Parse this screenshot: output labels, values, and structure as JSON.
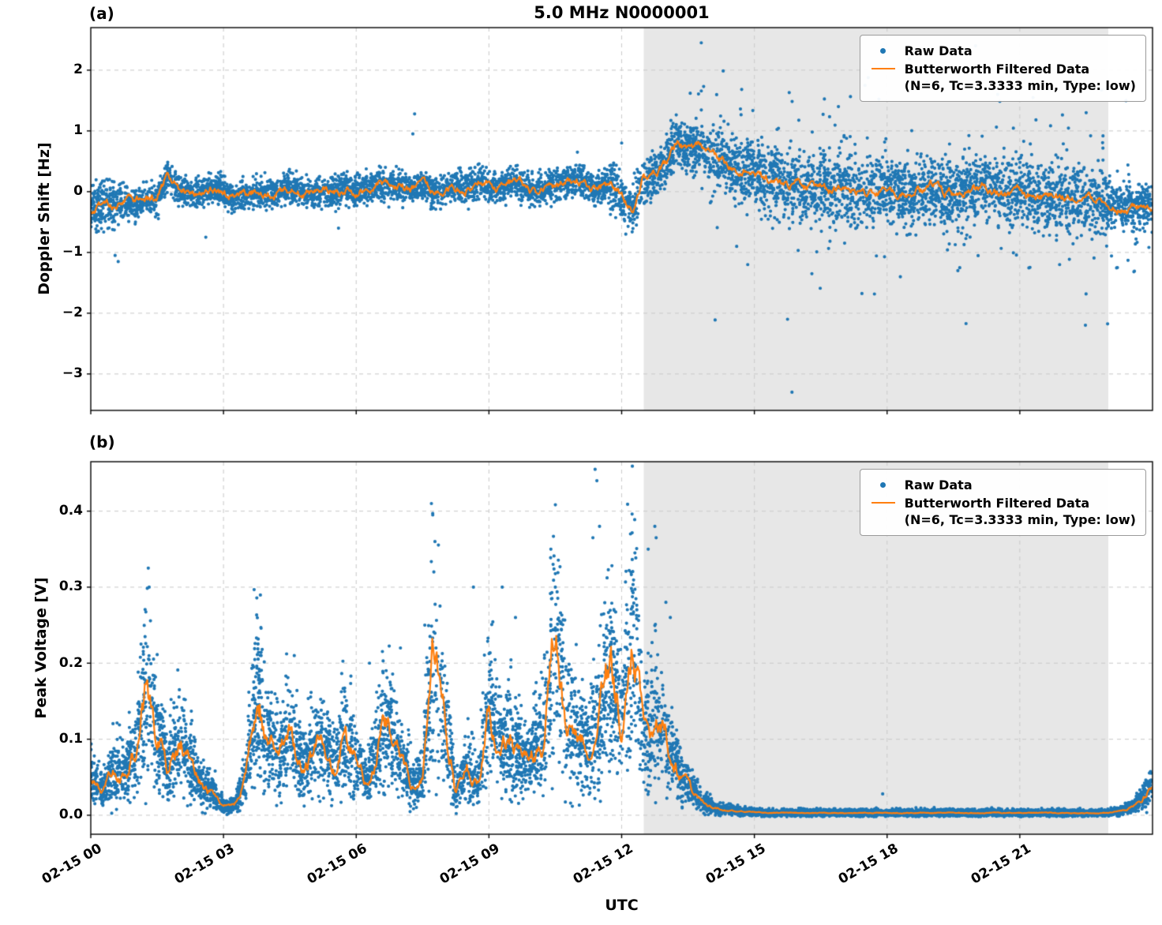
{
  "figure": {
    "title": "5.0 MHz N0000001",
    "xlabel": "UTC",
    "panel_a_label": "(a)",
    "panel_b_label": "(b)",
    "x_ticklabels": [
      "02-15 00",
      "02-15 03",
      "02-15 06",
      "02-15 09",
      "02-15 12",
      "02-15 15",
      "02-15 18",
      "02-15 21"
    ],
    "colors": {
      "raw": "#1f77b4",
      "filtered": "#ff7f0e",
      "night_shade": "#e7e7e7",
      "grid": "#cccccc",
      "spine": "#000000"
    },
    "legend": {
      "raw_label": "Raw Data",
      "filtered_label": "Butterworth Filtered Data",
      "filtered_sublabel": "(N=6, Tc=3.3333 min, Type: low)"
    }
  },
  "chart_data": [
    {
      "type": "scatter",
      "panel": "a",
      "ylabel": "Doppler Shift [Hz]",
      "ylim": [
        -3.6,
        2.7
      ],
      "yticks": [
        2,
        1,
        0,
        -1,
        -2,
        -3
      ],
      "y_ticklabels": [
        "2",
        "1",
        "0",
        "−1",
        "−2",
        "−3"
      ],
      "xlim_hours": [
        0,
        24
      ],
      "xticks_hours": [
        0,
        3,
        6,
        9,
        12,
        15,
        18,
        21
      ],
      "night_shade_hours": [
        12.5,
        23.0
      ],
      "grid": true,
      "legend_position": "upper right",
      "series": [
        {
          "name": "Raw Data",
          "render": "scatter",
          "color": "#1f77b4",
          "band_halfwidth_hz": [
            {
              "from": 0.0,
              "to": 0.8,
              "s": 0.3
            },
            {
              "from": 0.8,
              "to": 11.7,
              "s": 0.2
            },
            {
              "from": 11.7,
              "to": 12.5,
              "s": 0.34
            },
            {
              "from": 12.5,
              "to": 14.0,
              "s": 0.3
            },
            {
              "from": 14.0,
              "to": 23.0,
              "s": 0.42
            },
            {
              "from": 23.0,
              "to": 24.0,
              "s": 0.28
            }
          ],
          "notable_outliers": [
            [
              0.55,
              -1.05
            ],
            [
              0.62,
              -1.15
            ],
            [
              2.6,
              -0.75
            ],
            [
              5.6,
              -0.6
            ],
            [
              7.28,
              0.95
            ],
            [
              7.32,
              1.28
            ],
            [
              11.0,
              0.65
            ],
            [
              12.0,
              0.8
            ],
            [
              13.55,
              1.62
            ],
            [
              13.8,
              2.45
            ],
            [
              14.6,
              -0.9
            ],
            [
              14.85,
              -1.2
            ],
            [
              15.75,
              -2.1
            ],
            [
              15.85,
              -3.3
            ],
            [
              16.3,
              -1.35
            ],
            [
              16.9,
              1.4
            ],
            [
              17.5,
              1.75
            ],
            [
              18.3,
              -1.4
            ],
            [
              18.9,
              1.8
            ],
            [
              19.6,
              -1.3
            ],
            [
              20.0,
              2.4
            ],
            [
              20.5,
              1.6
            ],
            [
              21.3,
              1.55
            ],
            [
              21.9,
              -1.2
            ],
            [
              22.5,
              1.3
            ],
            [
              23.4,
              1.5
            ]
          ]
        },
        {
          "name": "Butterworth Filtered Data (N=6, Tc=3.3333 min, Type: low)",
          "render": "line",
          "color": "#ff7f0e",
          "x_hours_start": 0,
          "x_hours_step": 0.25,
          "y": [
            -0.35,
            -0.2,
            -0.25,
            -0.15,
            -0.2,
            -0.1,
            -0.15,
            0.3,
            0,
            -0.05,
            0,
            0.05,
            0,
            -0.1,
            -0.05,
            0,
            -0.05,
            0,
            0.05,
            0,
            -0.05,
            0,
            0,
            0.05,
            0,
            0.05,
            0.1,
            0.05,
            0.1,
            0.05,
            0.1,
            0,
            0.05,
            0.1,
            0.05,
            0.15,
            0.1,
            0.05,
            0.15,
            0.1,
            0,
            0.05,
            0.1,
            0.15,
            0.2,
            0.1,
            0.05,
            0.15,
            -0.1,
            -0.3,
            0.2,
            0.3,
            0.5,
            0.85,
            0.7,
            0.75,
            0.6,
            0.5,
            0.4,
            0.35,
            0.3,
            0.2,
            0.15,
            0.1,
            0.1,
            0.05,
            0.1,
            0,
            0.05,
            0,
            -0.05,
            0,
            0.05,
            0,
            -0.05,
            0,
            0.1,
            0,
            -0.05,
            0,
            0.05,
            0.1,
            0,
            -0.05,
            0,
            -0.05,
            -0.1,
            -0.05,
            -0.1,
            -0.15,
            -0.1,
            -0.15,
            -0.2,
            -0.25,
            -0.3,
            -0.2,
            -0.25
          ]
        }
      ]
    },
    {
      "type": "scatter",
      "panel": "b",
      "ylabel": "Peak Voltage [V]",
      "ylim": [
        -0.025,
        0.465
      ],
      "yticks": [
        0.0,
        0.1,
        0.2,
        0.3,
        0.4
      ],
      "y_ticklabels": [
        "0.0",
        "0.1",
        "0.2",
        "0.3",
        "0.4"
      ],
      "xlim_hours": [
        0,
        24
      ],
      "xticks_hours": [
        0,
        3,
        6,
        9,
        12,
        15,
        18,
        21
      ],
      "night_shade_hours": [
        12.5,
        23.0
      ],
      "grid": true,
      "legend_position": "upper right",
      "series": [
        {
          "name": "Raw Data",
          "render": "scatter",
          "color": "#1f77b4",
          "relative_band": {
            "min_factor": 0.0,
            "max_factor": 2.0,
            "additive_v": 0.004
          },
          "notable_outliers": [
            [
              1.3,
              0.325
            ],
            [
              1.32,
              0.3
            ],
            [
              3.85,
              0.21
            ],
            [
              4.6,
              0.21
            ],
            [
              6.3,
              0.2
            ],
            [
              7.0,
              0.22
            ],
            [
              7.55,
              0.25
            ],
            [
              7.7,
              0.41
            ],
            [
              7.73,
              0.395
            ],
            [
              7.78,
              0.36
            ],
            [
              8.65,
              0.3
            ],
            [
              9.3,
              0.3
            ],
            [
              9.6,
              0.26
            ],
            [
              10.4,
              0.35
            ],
            [
              10.45,
              0.33
            ],
            [
              10.5,
              0.3
            ],
            [
              11.35,
              0.365
            ],
            [
              11.4,
              0.455
            ],
            [
              11.44,
              0.44
            ],
            [
              11.5,
              0.38
            ],
            [
              12.2,
              0.37
            ],
            [
              12.3,
              0.345
            ],
            [
              12.6,
              0.35
            ],
            [
              12.75,
              0.38
            ],
            [
              12.78,
              0.365
            ],
            [
              13.0,
              0.28
            ],
            [
              13.1,
              0.26
            ],
            [
              17.9,
              0.028
            ]
          ]
        },
        {
          "name": "Butterworth Filtered Data (N=6, Tc=3.3333 min, Type: low)",
          "render": "line",
          "color": "#ff7f0e",
          "x_hours_start": 0,
          "x_hours_step": 0.25,
          "y": [
            0.05,
            0.03,
            0.06,
            0.05,
            0.08,
            0.17,
            0.1,
            0.06,
            0.1,
            0.07,
            0.04,
            0.03,
            0.012,
            0.012,
            0.05,
            0.16,
            0.1,
            0.08,
            0.11,
            0.06,
            0.08,
            0.1,
            0.06,
            0.1,
            0.07,
            0.04,
            0.1,
            0.12,
            0.08,
            0.04,
            0.05,
            0.2,
            0.12,
            0.03,
            0.06,
            0.04,
            0.14,
            0.09,
            0.1,
            0.07,
            0.08,
            0.1,
            0.24,
            0.12,
            0.1,
            0.09,
            0.13,
            0.2,
            0.12,
            0.24,
            0.1,
            0.12,
            0.1,
            0.06,
            0.04,
            0.02,
            0.012,
            0.008,
            0.006,
            0.005,
            0.004,
            0.003,
            0.003,
            0.003,
            0.003,
            0.003,
            0.003,
            0.003,
            0.003,
            0.003,
            0.003,
            0.003,
            0.003,
            0.003,
            0.003,
            0.003,
            0.003,
            0.003,
            0.003,
            0.003,
            0.003,
            0.003,
            0.003,
            0.003,
            0.003,
            0.003,
            0.003,
            0.003,
            0.003,
            0.003,
            0.003,
            0.003,
            0.003,
            0.005,
            0.01,
            0.02,
            0.04
          ]
        }
      ]
    }
  ]
}
